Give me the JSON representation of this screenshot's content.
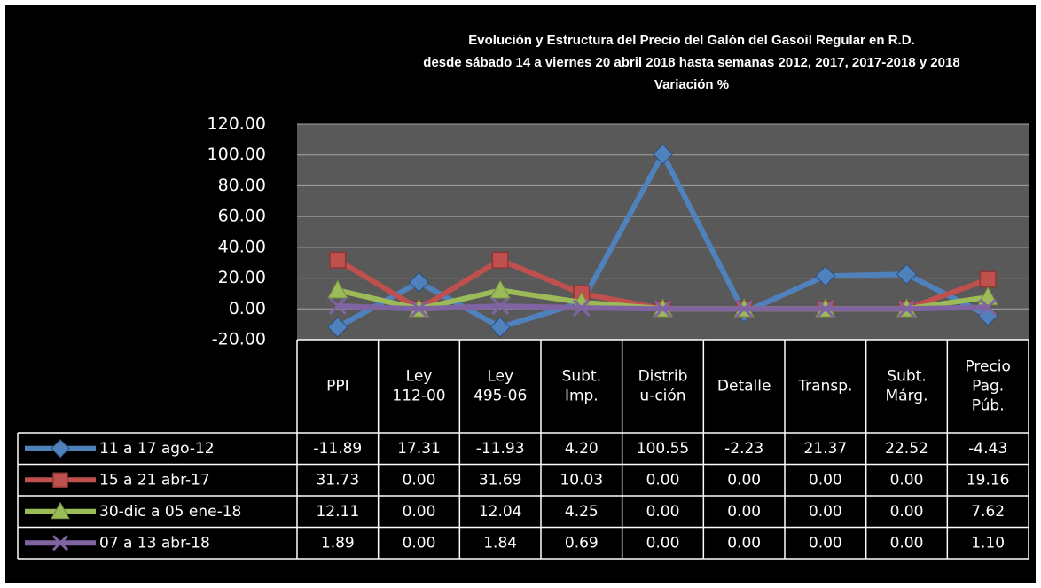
{
  "chart_data": {
    "type": "line",
    "title": [
      "Evolución y Estructura del Precio del Galón del Gasoil Regular en R.D.",
      "desde sábado 14 a viernes 20 abril 2018 hasta semanas 2012, 2017, 2017-2018 y 2018",
      "Variación %"
    ],
    "categories": [
      [
        "PPI"
      ],
      [
        "Ley",
        "112-00"
      ],
      [
        "Ley",
        "495-06"
      ],
      [
        "Subt.",
        "Imp."
      ],
      [
        "Distrib",
        "u-ción"
      ],
      [
        "Detalle"
      ],
      [
        "Transp."
      ],
      [
        "Subt.",
        "Márg."
      ],
      [
        "Precio",
        "Pag.",
        "Púb."
      ]
    ],
    "ylim": [
      -20,
      120
    ],
    "yticks": [
      {
        "value": -20,
        "label": "-20.00"
      },
      {
        "value": 0,
        "label": "0.00"
      },
      {
        "value": 20,
        "label": "20.00"
      },
      {
        "value": 40,
        "label": "40.00"
      },
      {
        "value": 60,
        "label": "60.00"
      },
      {
        "value": 80,
        "label": "80.00"
      },
      {
        "value": 100,
        "label": "100.00"
      },
      {
        "value": 120,
        "label": "120.00"
      }
    ],
    "grid": true,
    "series": [
      {
        "name": "11 a 17 ago-12",
        "color": "#4f81bd",
        "marker": "diamond",
        "values": [
          -11.89,
          17.31,
          -11.93,
          4.2,
          100.55,
          -2.23,
          21.37,
          22.52,
          -4.43
        ],
        "value_labels": [
          "-11.89",
          "17.31",
          "-11.93",
          "4.20",
          "100.55",
          "-2.23",
          "21.37",
          "22.52",
          "-4.43"
        ]
      },
      {
        "name": "15 a 21 abr-17",
        "color": "#c0504d",
        "marker": "square",
        "values": [
          31.73,
          0,
          31.69,
          10.03,
          0,
          0,
          0,
          0,
          19.16
        ],
        "value_labels": [
          "31.73",
          "0.00",
          "31.69",
          "10.03",
          "0.00",
          "0.00",
          "0.00",
          "0.00",
          "19.16"
        ]
      },
      {
        "name": "30-dic a 05 ene-18",
        "color": "#9bbb59",
        "marker": "triangle",
        "values": [
          12.11,
          0,
          12.04,
          4.25,
          0,
          0,
          0,
          0,
          7.62
        ],
        "value_labels": [
          "12.11",
          "0.00",
          "12.04",
          "4.25",
          "0.00",
          "0.00",
          "0.00",
          "0.00",
          "7.62"
        ]
      },
      {
        "name": "07 a 13 abr-18",
        "color": "#8064a2",
        "marker": "x",
        "values": [
          1.89,
          0,
          1.84,
          0.69,
          0,
          0,
          0,
          0,
          1.1
        ],
        "value_labels": [
          "1.89",
          "0.00",
          "1.84",
          "0.69",
          "0.00",
          "0.00",
          "0.00",
          "0.00",
          "1.10"
        ]
      }
    ]
  }
}
